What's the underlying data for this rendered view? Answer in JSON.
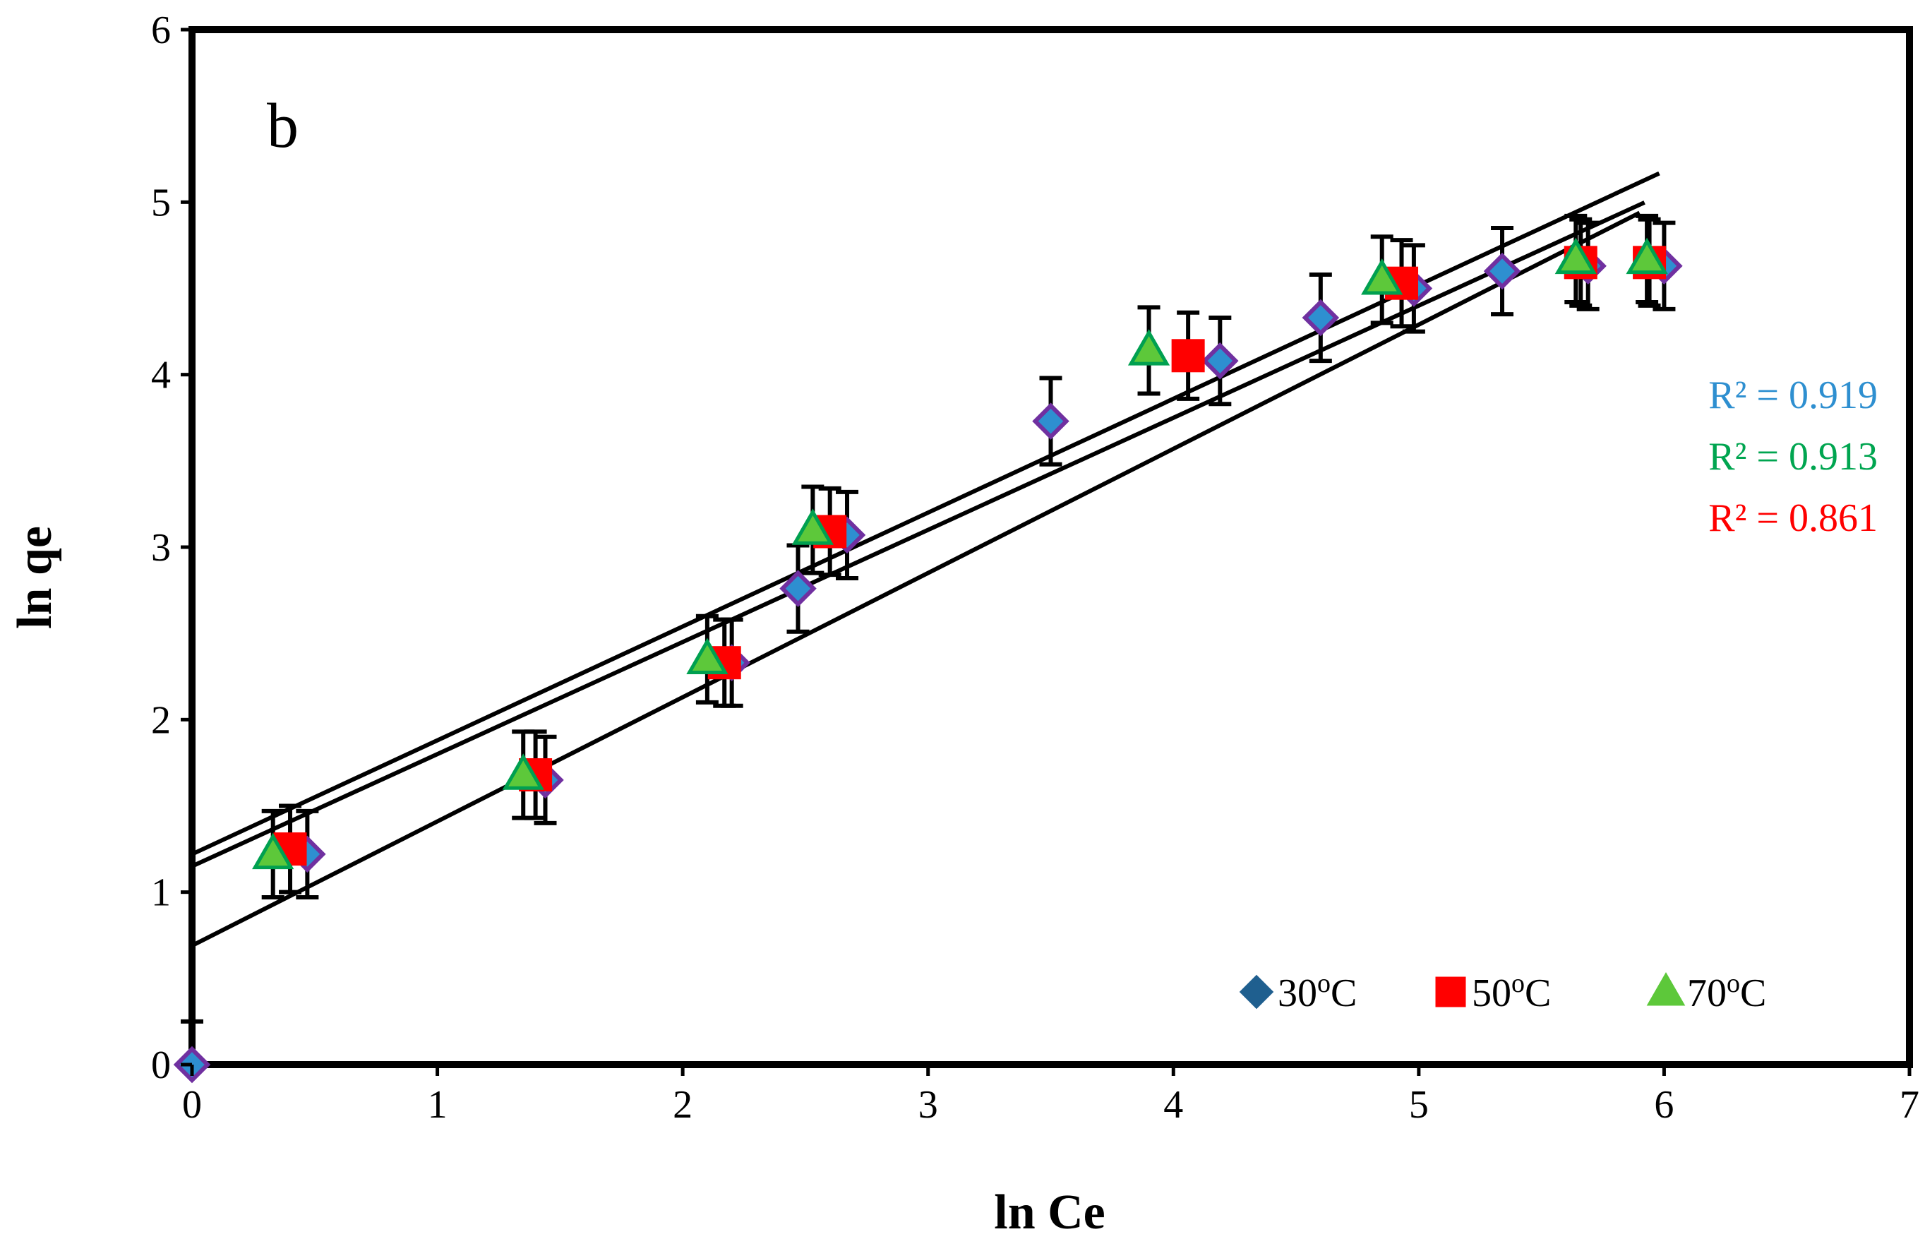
{
  "chart_data": {
    "type": "scatter",
    "panel_label": "b",
    "xlabel": "ln Ce",
    "ylabel": "ln qe",
    "xlim": [
      0,
      7
    ],
    "ylim": [
      0,
      6
    ],
    "xticks": [
      "0",
      "1",
      "2",
      "3",
      "4",
      "5",
      "6",
      "7"
    ],
    "yticks": [
      "0",
      "1",
      "2",
      "3",
      "4",
      "5",
      "6"
    ],
    "grid": false,
    "legend_position": "bottom-right",
    "error_bar_halfwidth": 0.25,
    "series": [
      {
        "name": "30oC",
        "legend_main": "30",
        "legend_sup": "o",
        "legend_tail": "C",
        "marker": "diamond",
        "color": "#2E8FD0",
        "edge_color": "#7030A0",
        "legend_color": "#1F5F8F",
        "x": [
          0.0,
          0.47,
          1.44,
          2.2,
          2.47,
          2.67,
          3.5,
          4.19,
          4.6,
          4.98,
          5.34,
          5.69,
          6.0
        ],
        "y": [
          0.0,
          1.22,
          1.65,
          2.33,
          2.76,
          3.07,
          3.73,
          4.08,
          4.33,
          4.5,
          4.6,
          4.63,
          4.63
        ],
        "fit": {
          "slope": 0.72,
          "intercept": 0.69,
          "x_end": 5.9
        },
        "r2": "R² = 0.919",
        "r2_color": "#2E8FD0"
      },
      {
        "name": "50oC",
        "legend_main": "50",
        "legend_sup": "o",
        "legend_tail": "C",
        "marker": "square",
        "color": "#FF0000",
        "edge_color": "#FF0000",
        "legend_color": "#FF0000",
        "x": [
          0.4,
          1.4,
          2.17,
          2.6,
          4.06,
          4.93,
          5.66,
          5.94
        ],
        "y": [
          1.25,
          1.68,
          2.33,
          3.09,
          4.11,
          4.53,
          4.65,
          4.65
        ],
        "fit": {
          "slope": 0.65,
          "intercept": 1.15,
          "x_end": 5.92
        },
        "r2": "R² = 0.861",
        "r2_color": "#FF0000"
      },
      {
        "name": "70oC",
        "legend_main": "70",
        "legend_sup": "o",
        "legend_tail": "C",
        "marker": "triangle",
        "color": "#5DC83A",
        "edge_color": "#00A050",
        "legend_color": "#5DC83A",
        "x": [
          0.33,
          1.35,
          2.1,
          2.53,
          3.9,
          4.85,
          5.64,
          5.93
        ],
        "y": [
          1.22,
          1.68,
          2.35,
          3.1,
          4.14,
          4.55,
          4.67,
          4.67
        ],
        "fit": {
          "slope": 0.66,
          "intercept": 1.22,
          "x_end": 5.98
        },
        "r2": "R² = 0.913",
        "r2_color": "#00A550"
      }
    ]
  }
}
